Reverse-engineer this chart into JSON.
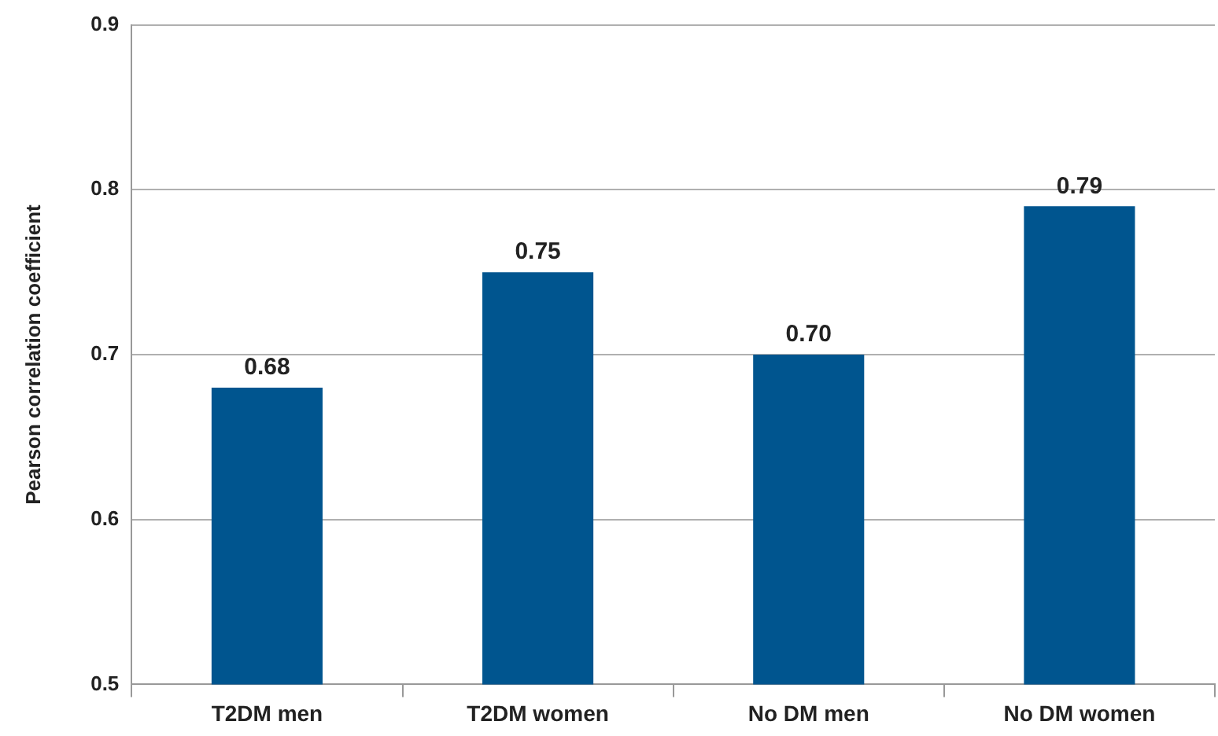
{
  "chart_data": {
    "type": "bar",
    "ylabel": "Pearson correlation coefficient",
    "categories": [
      "T2DM men",
      "T2DM women",
      "No DM men",
      "No DM women"
    ],
    "values": [
      0.68,
      0.75,
      0.7,
      0.79
    ],
    "color": "#00558f",
    "value_labels": [
      "0.68",
      "0.75",
      "0.70",
      "0.79"
    ],
    "ylim": [
      0.5,
      0.9
    ],
    "yticks": [
      0.5,
      0.6,
      0.7,
      0.8,
      0.9
    ],
    "grid": "y"
  }
}
